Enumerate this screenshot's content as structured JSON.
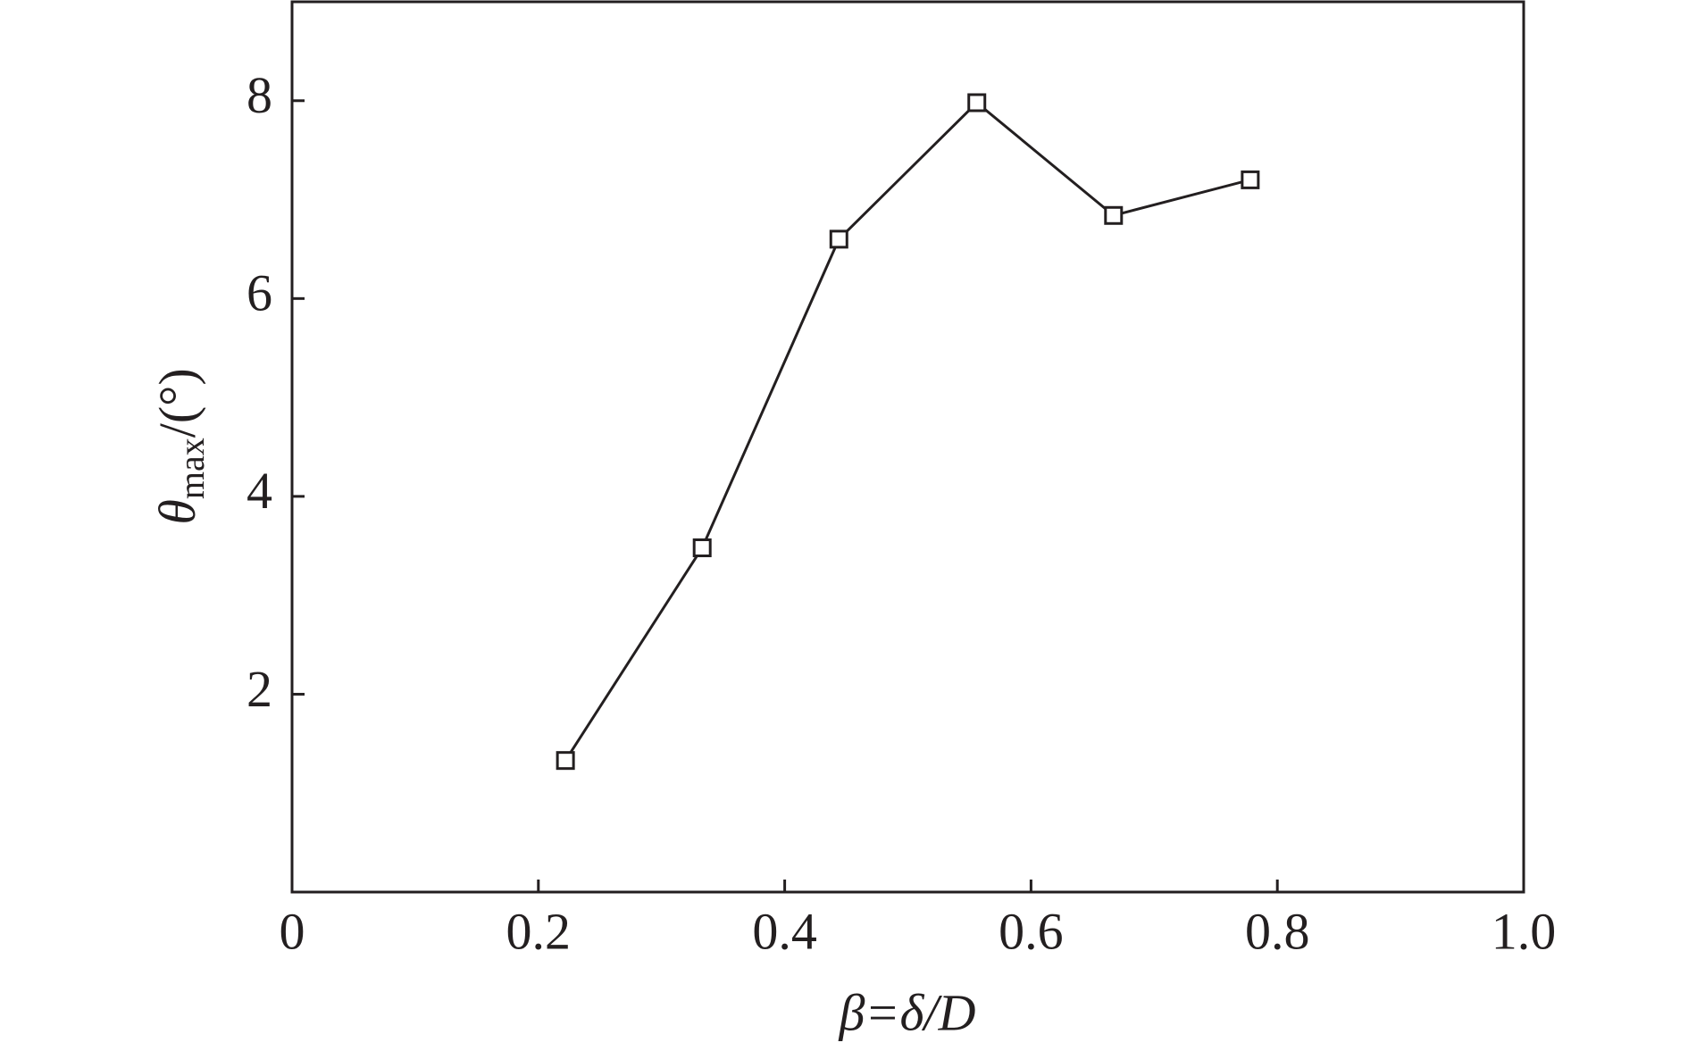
{
  "chart_data": {
    "type": "line",
    "x_label": "β=δ/D",
    "y_label": {
      "symbol": "θ",
      "subscript": "max",
      "unit": "/(°)"
    },
    "x": [
      0.222,
      0.333,
      0.444,
      0.556,
      0.667,
      0.778
    ],
    "series": [
      {
        "color": "#231f20",
        "values": [
          1.33,
          3.48,
          6.6,
          7.98,
          6.84,
          7.2
        ]
      }
    ],
    "xlim": [
      0,
      1
    ],
    "xticks": [
      0,
      0.2,
      0.4,
      0.6,
      0.8,
      {
        "value": 1,
        "label": "1.0"
      }
    ],
    "ylim": [
      0,
      9
    ],
    "yticks": [
      2,
      4,
      6,
      8
    ],
    "marker": "square",
    "grid": false
  }
}
